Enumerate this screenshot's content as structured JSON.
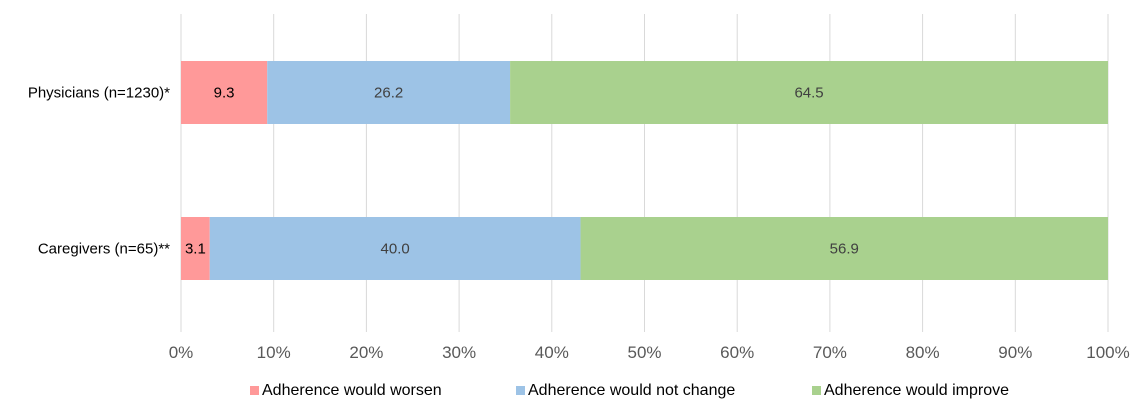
{
  "chart_data": {
    "type": "bar",
    "orientation": "horizontal",
    "stacked": true,
    "categories": [
      "Physicians (n=1230)*",
      "Caregivers (n=65)**"
    ],
    "series": [
      {
        "name": "Adherence would worsen",
        "color": "#ff9999",
        "values": [
          9.3,
          3.1
        ],
        "labels": [
          "9.3",
          "3.1"
        ]
      },
      {
        "name": "Adherence would not change",
        "color": "#9dc3e6",
        "values": [
          26.2,
          40.0
        ],
        "labels": [
          "26.2",
          "40.0"
        ]
      },
      {
        "name": "Adherence would improve",
        "color": "#a9d18e",
        "values": [
          64.5,
          56.9
        ],
        "labels": [
          "64.5",
          "56.9"
        ]
      }
    ],
    "x_ticks": [
      "0%",
      "10%",
      "20%",
      "30%",
      "40%",
      "50%",
      "60%",
      "70%",
      "80%",
      "90%",
      "100%"
    ],
    "xlim": [
      0,
      100
    ],
    "grid": true,
    "legend_position": "bottom"
  }
}
